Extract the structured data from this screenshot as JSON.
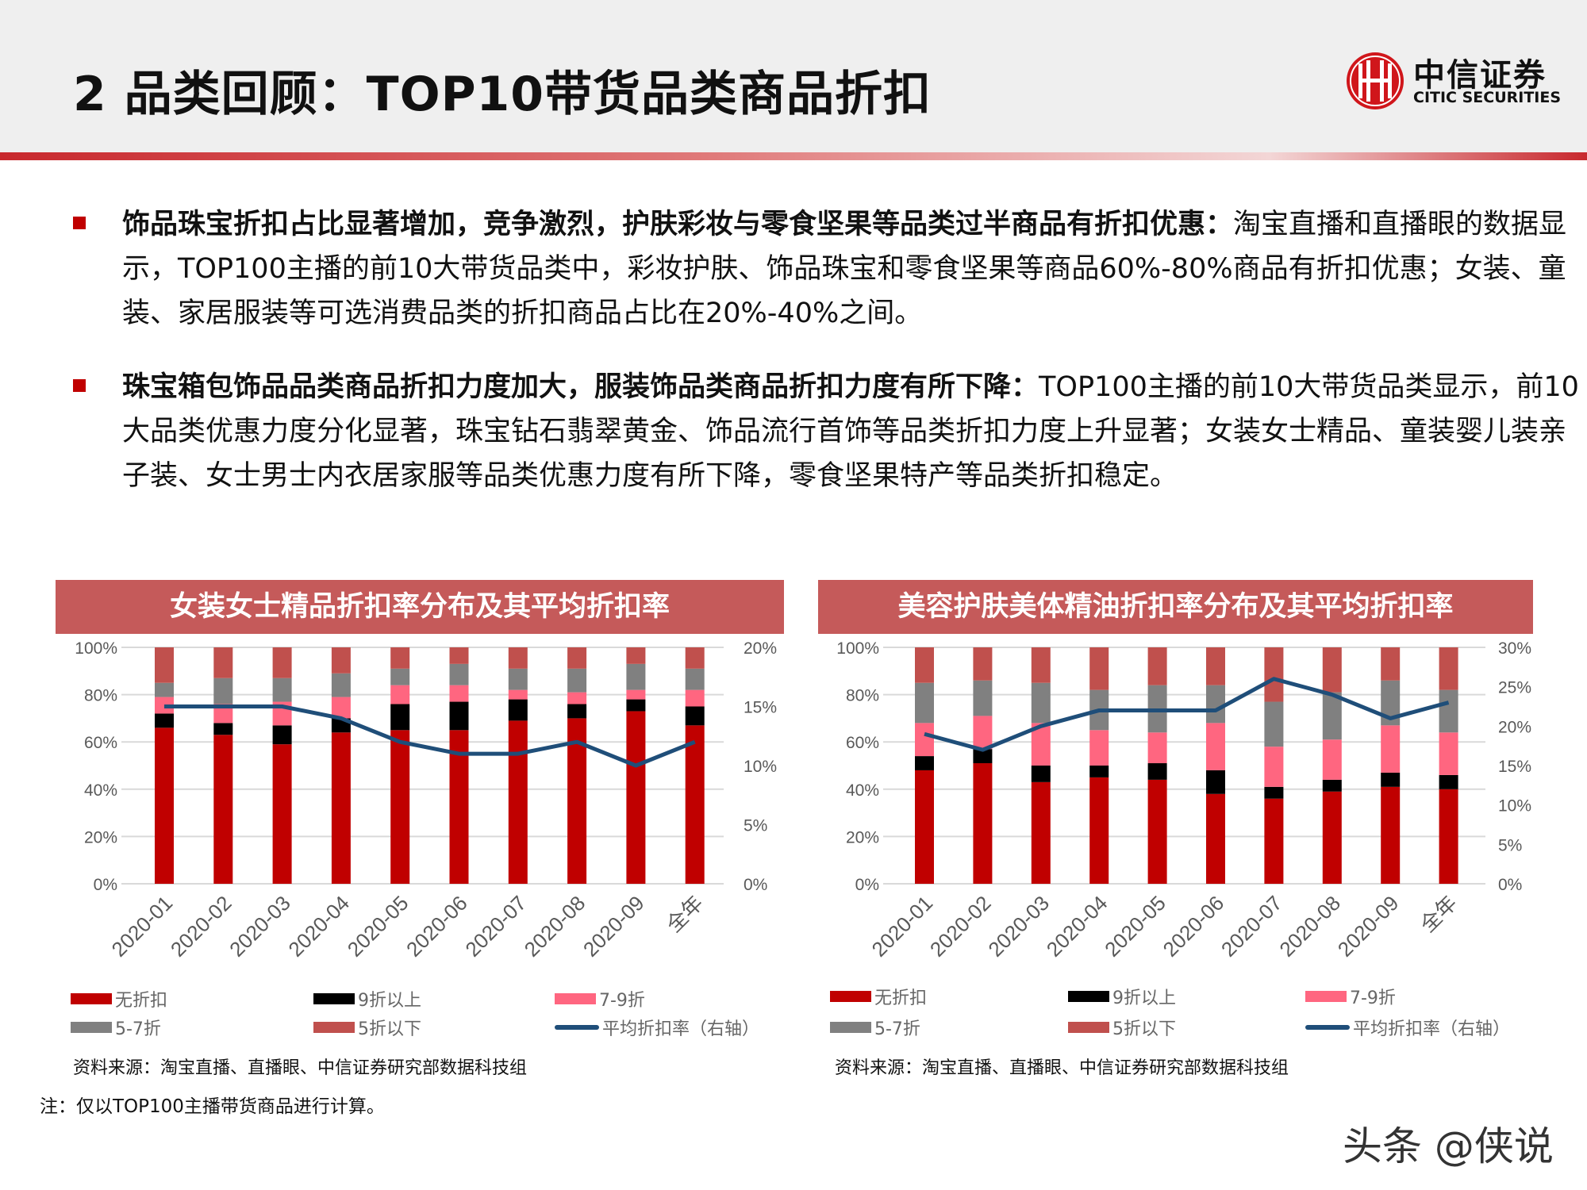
{
  "header": {
    "title": "2 品类回顾：TOP10带货品类商品折扣",
    "logo_cn": "中信证券",
    "logo_en": "CITIC SECURITIES"
  },
  "bullets": [
    {
      "bold": "饰品珠宝折扣占比显著增加，竞争激烈，护肤彩妆与零食坚果等品类过半商品有折扣优惠：",
      "text": "淘宝直播和直播眼的数据显示，TOP100主播的前10大带货品类中，彩妆护肤、饰品珠宝和零食坚果等商品60%-80%商品有折扣优惠；女装、童装、家居服装等可选消费品类的折扣商品占比在20%-40%之间。"
    },
    {
      "bold": "珠宝箱包饰品品类商品折扣力度加大，服装饰品类商品折扣力度有所下降：",
      "text": "TOP100主播的前10大带货品类显示，前10大品类优惠力度分化显著，珠宝钻石翡翠黄金、饰品流行首饰等品类折扣力度上升显著；女装女士精品、童装婴儿装亲子装、女士男士内衣居家服等品类优惠力度有所下降，零食坚果特产等品类折扣稳定。"
    }
  ],
  "chart_data": [
    {
      "type": "bar",
      "stacked": true,
      "title": "女装女士精品折扣率分布及其平均折扣率",
      "categories": [
        "2020-01",
        "2020-02",
        "2020-03",
        "2020-04",
        "2020-05",
        "2020-06",
        "2020-07",
        "2020-08",
        "2020-09",
        "全年"
      ],
      "y_ticks": [
        "0%",
        "20%",
        "40%",
        "60%",
        "80%",
        "100%"
      ],
      "y2_ticks": [
        "0%",
        "5%",
        "10%",
        "15%",
        "20%"
      ],
      "ylim": [
        0,
        100
      ],
      "y2lim": [
        0,
        20
      ],
      "grid": true,
      "legend_position": "bottom",
      "series": [
        {
          "name": "无折扣",
          "color": "#c00000",
          "values": [
            66,
            63,
            59,
            64,
            65,
            65,
            69,
            70,
            73,
            67
          ]
        },
        {
          "name": "9折以上",
          "color": "#000000",
          "values": [
            6,
            5,
            8,
            6,
            11,
            12,
            9,
            6,
            5,
            8
          ]
        },
        {
          "name": "7-9折",
          "color": "#ff6680",
          "values": [
            7,
            8,
            10,
            9,
            8,
            7,
            4,
            5,
            4,
            7
          ]
        },
        {
          "name": "5-7折",
          "color": "#808080",
          "values": [
            6,
            11,
            10,
            10,
            7,
            9,
            9,
            10,
            11,
            9
          ]
        },
        {
          "name": "5折以下",
          "color": "#c0504d",
          "values": [
            15,
            13,
            13,
            11,
            9,
            7,
            9,
            9,
            7,
            9
          ]
        }
      ],
      "line": {
        "name": "平均折扣率（右轴）",
        "color": "#1f4e79",
        "values": [
          15,
          15,
          15,
          14,
          12,
          11,
          11,
          12,
          10,
          12
        ]
      },
      "source": "资料来源：淘宝直播、直播眼、中信证券研究部数据科技组"
    },
    {
      "type": "bar",
      "stacked": true,
      "title": "美容护肤美体精油折扣率分布及其平均折扣率",
      "categories": [
        "2020-01",
        "2020-02",
        "2020-03",
        "2020-04",
        "2020-05",
        "2020-06",
        "2020-07",
        "2020-08",
        "2020-09",
        "全年"
      ],
      "y_ticks": [
        "0%",
        "20%",
        "40%",
        "60%",
        "80%",
        "100%"
      ],
      "y2_ticks": [
        "0%",
        "5%",
        "10%",
        "15%",
        "20%",
        "25%",
        "30%"
      ],
      "ylim": [
        0,
        100
      ],
      "y2lim": [
        0,
        30
      ],
      "grid": true,
      "legend_position": "bottom",
      "series": [
        {
          "name": "无折扣",
          "color": "#c00000",
          "values": [
            48,
            51,
            43,
            45,
            44,
            38,
            36,
            39,
            41,
            40
          ]
        },
        {
          "name": "9折以上",
          "color": "#000000",
          "values": [
            6,
            6,
            7,
            5,
            7,
            10,
            5,
            5,
            6,
            6
          ]
        },
        {
          "name": "7-9折",
          "color": "#ff6680",
          "values": [
            14,
            14,
            18,
            15,
            13,
            20,
            17,
            17,
            20,
            18
          ]
        },
        {
          "name": "5-7折",
          "color": "#808080",
          "values": [
            17,
            15,
            17,
            17,
            20,
            16,
            19,
            20,
            19,
            18
          ]
        },
        {
          "name": "5折以下",
          "color": "#c0504d",
          "values": [
            15,
            14,
            15,
            18,
            16,
            16,
            23,
            19,
            14,
            18
          ]
        }
      ],
      "line": {
        "name": "平均折扣率（右轴）",
        "color": "#1f4e79",
        "values": [
          19,
          17,
          20,
          22,
          22,
          22,
          26,
          24,
          21,
          23
        ]
      },
      "source": "资料来源：淘宝直播、直播眼、中信证券研究部数据科技组"
    }
  ],
  "note": "注：仅以TOP100主播带货商品进行计算。",
  "watermark": "头条 @侠说"
}
